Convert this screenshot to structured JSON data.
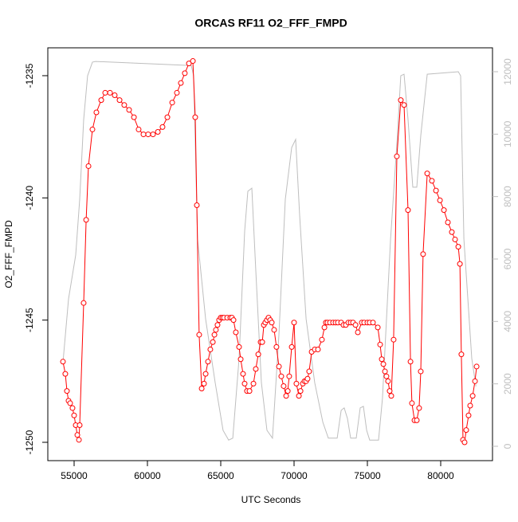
{
  "chart_data": {
    "type": "line",
    "title": "ORCAS RF11 O2_FFF_FMPD",
    "xlabel": "UTC Seconds",
    "ylabel": "O2_FFF_FMPD",
    "xlim": [
      53207,
      83533
    ],
    "ylim": [
      -1250.75,
      -1233.86
    ],
    "y2lim": [
      -460,
      12766
    ],
    "xticks": [
      55000,
      60000,
      65000,
      70000,
      75000,
      80000
    ],
    "yticks": [
      -1250,
      -1245,
      -1240,
      -1235
    ],
    "y2ticks": [
      0,
      2000,
      4000,
      6000,
      8000,
      10000,
      12000
    ],
    "series": [
      {
        "color": "#ff0000",
        "marker": "circle",
        "x": [
          54240,
          54400,
          54510,
          54620,
          54730,
          54890,
          55000,
          55110,
          55220,
          55330,
          55380,
          55650,
          55820,
          55980,
          56250,
          56520,
          56850,
          57120,
          57450,
          57770,
          58100,
          58420,
          58750,
          59080,
          59400,
          59730,
          60050,
          60380,
          60710,
          61030,
          61360,
          61690,
          62010,
          62280,
          62550,
          62830,
          63100,
          63260,
          63370,
          63530,
          63700,
          63860,
          63970,
          64130,
          64290,
          64460,
          64570,
          64670,
          64780,
          64890,
          65000,
          65110,
          65220,
          65440,
          65650,
          65760,
          65870,
          66030,
          66250,
          66360,
          66520,
          66630,
          66790,
          66960,
          67230,
          67390,
          67560,
          67720,
          67830,
          67940,
          68040,
          68150,
          68260,
          68370,
          68480,
          68640,
          68800,
          68970,
          69130,
          69290,
          69460,
          69570,
          69670,
          69840,
          70000,
          70160,
          70330,
          70440,
          70600,
          70710,
          70820,
          70920,
          71030,
          71200,
          71410,
          71630,
          71900,
          72070,
          72170,
          72280,
          72450,
          72660,
          72830,
          72990,
          73210,
          73370,
          73530,
          73700,
          73860,
          74020,
          74190,
          74350,
          74620,
          74780,
          75000,
          75160,
          75380,
          75710,
          75870,
          75980,
          76090,
          76200,
          76300,
          76410,
          76520,
          76630,
          76790,
          77010,
          77280,
          77500,
          77770,
          77940,
          78040,
          78210,
          78370,
          78530,
          78640,
          78800,
          79080,
          79400,
          79680,
          79950,
          80220,
          80490,
          80760,
          80980,
          81200,
          81310,
          81410,
          81520,
          81630,
          81740,
          81900,
          82010,
          82180,
          82340,
          82450
        ],
        "values": [
          -1246.7,
          -1247.2,
          -1247.9,
          -1248.3,
          -1248.4,
          -1248.6,
          -1248.9,
          -1249.3,
          -1249.7,
          -1249.9,
          -1249.3,
          -1244.3,
          -1240.9,
          -1238.7,
          -1237.2,
          -1236.5,
          -1236.0,
          -1235.7,
          -1235.7,
          -1235.8,
          -1236.0,
          -1236.2,
          -1236.4,
          -1236.7,
          -1237.2,
          -1237.4,
          -1237.4,
          -1237.4,
          -1237.3,
          -1237.1,
          -1236.7,
          -1236.1,
          -1235.7,
          -1235.3,
          -1234.9,
          -1234.5,
          -1234.4,
          -1236.7,
          -1240.3,
          -1245.6,
          -1247.8,
          -1247.6,
          -1247.2,
          -1246.7,
          -1246.2,
          -1245.9,
          -1245.6,
          -1245.4,
          -1245.2,
          -1245.0,
          -1244.9,
          -1244.9,
          -1244.9,
          -1244.9,
          -1244.9,
          -1244.9,
          -1245.0,
          -1245.5,
          -1246.1,
          -1246.6,
          -1247.2,
          -1247.6,
          -1247.9,
          -1247.9,
          -1247.6,
          -1247.0,
          -1246.4,
          -1245.9,
          -1245.9,
          -1245.2,
          -1245.1,
          -1245.0,
          -1244.9,
          -1245.0,
          -1245.1,
          -1245.4,
          -1246.1,
          -1246.9,
          -1247.3,
          -1247.7,
          -1248.1,
          -1247.9,
          -1247.3,
          -1246.1,
          -1245.1,
          -1247.6,
          -1248.1,
          -1247.9,
          -1247.6,
          -1247.5,
          -1247.5,
          -1247.4,
          -1247.1,
          -1246.3,
          -1246.2,
          -1246.2,
          -1245.8,
          -1245.3,
          -1245.1,
          -1245.1,
          -1245.1,
          -1245.1,
          -1245.1,
          -1245.1,
          -1245.1,
          -1245.2,
          -1245.2,
          -1245.1,
          -1245.1,
          -1245.1,
          -1245.2,
          -1245.5,
          -1245.1,
          -1245.1,
          -1245.1,
          -1245.1,
          -1245.1,
          -1245.3,
          -1246.0,
          -1246.6,
          -1246.8,
          -1247.1,
          -1247.3,
          -1247.5,
          -1247.9,
          -1248.1,
          -1245.8,
          -1238.3,
          -1236.0,
          -1236.2,
          -1240.5,
          -1246.7,
          -1248.4,
          -1249.1,
          -1249.1,
          -1248.6,
          -1247.1,
          -1242.3,
          -1239.0,
          -1239.3,
          -1239.7,
          -1240.1,
          -1240.5,
          -1241.0,
          -1241.4,
          -1241.7,
          -1242.0,
          -1242.7,
          -1246.4,
          -1249.9,
          -1250.0,
          -1249.5,
          -1248.9,
          -1248.5,
          -1248.1,
          -1247.5,
          -1246.9
        ]
      },
      {
        "color": "#bebebe",
        "axis": "y2",
        "x": [
          54240,
          54620,
          55110,
          55380,
          55650,
          55920,
          56250,
          56470,
          62990,
          63150,
          63420,
          63970,
          64620,
          65160,
          65540,
          65820,
          66250,
          66630,
          66850,
          67120,
          67390,
          67770,
          68150,
          68530,
          68970,
          69400,
          69840,
          70110,
          70380,
          70820,
          71410,
          71960,
          72340,
          72940,
          73210,
          73420,
          73640,
          73860,
          74240,
          74510,
          74730,
          74950,
          75160,
          75760,
          76030,
          76580,
          77010,
          77280,
          77500,
          77770,
          78100,
          78370,
          78640,
          79080,
          81200,
          81360,
          81580,
          82120,
          82400
        ],
        "values": [
          2680,
          4720,
          6130,
          7910,
          10470,
          11870,
          12310,
          12330,
          12200,
          11870,
          6640,
          4080,
          2040,
          510,
          200,
          260,
          2810,
          6890,
          8170,
          8270,
          5620,
          2040,
          510,
          260,
          3570,
          7910,
          9570,
          9830,
          7400,
          4080,
          2040,
          770,
          260,
          260,
          1150,
          1230,
          890,
          260,
          260,
          1230,
          1280,
          510,
          200,
          200,
          1530,
          6640,
          9700,
          11870,
          11920,
          10470,
          8300,
          8300,
          9960,
          11920,
          12000,
          11870,
          6640,
          2810,
          1920
        ]
      }
    ]
  }
}
